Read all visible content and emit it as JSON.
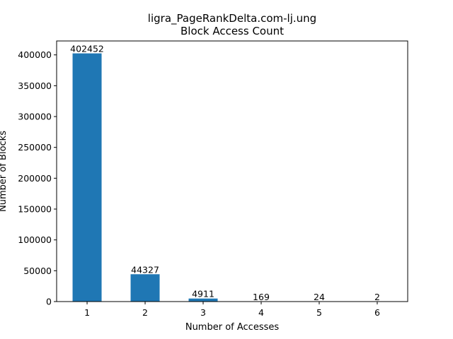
{
  "chart_data": {
    "type": "bar",
    "title": "ligra_PageRankDelta.com-lj.ung",
    "subtitle": "Block Access Count",
    "xlabel": "Number of Accesses",
    "ylabel": "Number of Blocks",
    "categories": [
      "1",
      "2",
      "3",
      "4",
      "5",
      "6"
    ],
    "values": [
      402452,
      44327,
      4911,
      169,
      24,
      2
    ],
    "data_labels": [
      "402452",
      "44327",
      "4911",
      "169",
      "24",
      "2"
    ],
    "ylim": [
      0,
      422575
    ],
    "yticks": [
      0,
      50000,
      100000,
      150000,
      200000,
      250000,
      300000,
      350000,
      400000
    ],
    "ytick_labels": [
      "0",
      "50000",
      "100000",
      "150000",
      "200000",
      "250000",
      "300000",
      "350000",
      "400000"
    ],
    "bar_color": "#1f77b4",
    "grid": false,
    "legend": "none"
  }
}
